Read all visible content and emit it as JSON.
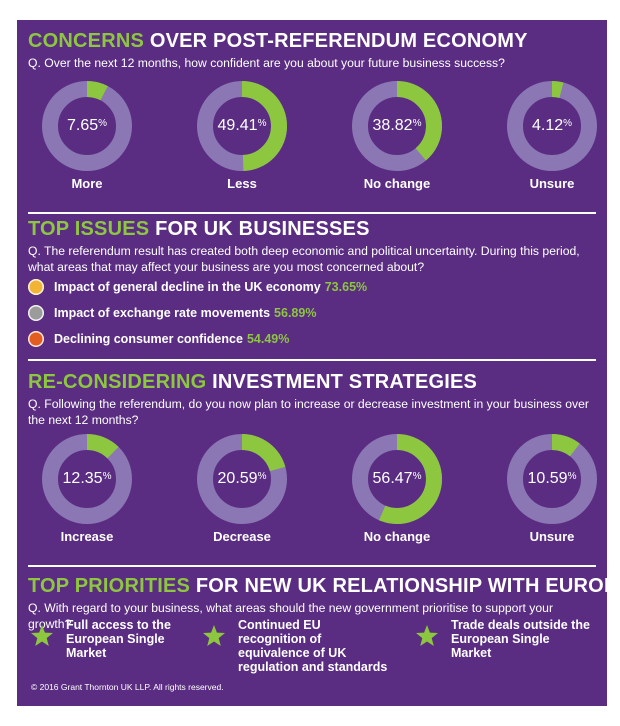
{
  "colors": {
    "background": "#5a2d82",
    "accent": "#8dc63f",
    "ring_track": "#8a77b3",
    "gold": "#f1b434",
    "grey": "#9b9b9b",
    "orange": "#e35d20"
  },
  "section1": {
    "title_highlight": "CONCERNS",
    "title_rest": " OVER POST-REFERENDUM ECONOMY",
    "question": "Q. Over the next 12 months, how confident are you about your future business success?"
  },
  "section2": {
    "title_highlight": "TOP ISSUES",
    "title_rest": " FOR UK BUSINESSES",
    "question": "Q. The referendum result has created both deep economic and political uncertainty. During this period, what areas that may affect your business are you most concerned about?",
    "issues": [
      {
        "label": "Impact of general decline in the UK economy",
        "value_text": "73.65%",
        "color": "#f1b434"
      },
      {
        "label": "Impact of exchange rate movements",
        "value_text": "56.89%",
        "color": "#9b9b9b"
      },
      {
        "label": "Declining consumer confidence",
        "value_text": "54.49%",
        "color": "#e35d20"
      }
    ]
  },
  "section3": {
    "title_highlight": "RE-CONSIDERING",
    "title_rest": " INVESTMENT STRATEGIES",
    "question": "Q. Following the referendum, do you now plan to increase or decrease investment in your business over the next 12 months?"
  },
  "section4": {
    "title_highlight": "TOP PRIORITIES",
    "title_rest": " FOR NEW UK RELATIONSHIP WITH EUROPE",
    "question": "Q. With regard to your business, what areas should the new government prioritise to support your growth?",
    "priorities": [
      "Full access to the European Single Market",
      "Continued EU recognition of equivalence of UK regulation and standards",
      "Trade deals outside the European Single Market"
    ]
  },
  "percent_sign": "%",
  "copyright": "© 2016 Grant Thornton UK LLP. All rights reserved.",
  "chart_data": [
    {
      "type": "pie",
      "categories": [
        "More",
        "Less",
        "No change",
        "Unsure"
      ],
      "values": [
        7.65,
        49.41,
        38.82,
        4.12
      ],
      "value_labels": [
        "7.65",
        "49.41",
        "38.82",
        "4.12"
      ]
    },
    {
      "type": "bar",
      "categories": [
        "Impact of general decline in the UK economy",
        "Impact of exchange rate movements",
        "Declining consumer confidence"
      ],
      "values": [
        73.65,
        56.89,
        54.49
      ]
    },
    {
      "type": "pie",
      "categories": [
        "Increase",
        "Decrease",
        "No change",
        "Unsure"
      ],
      "values": [
        12.35,
        20.59,
        56.47,
        10.59
      ],
      "value_labels": [
        "12.35",
        "20.59",
        "56.47",
        "10.59"
      ]
    }
  ]
}
